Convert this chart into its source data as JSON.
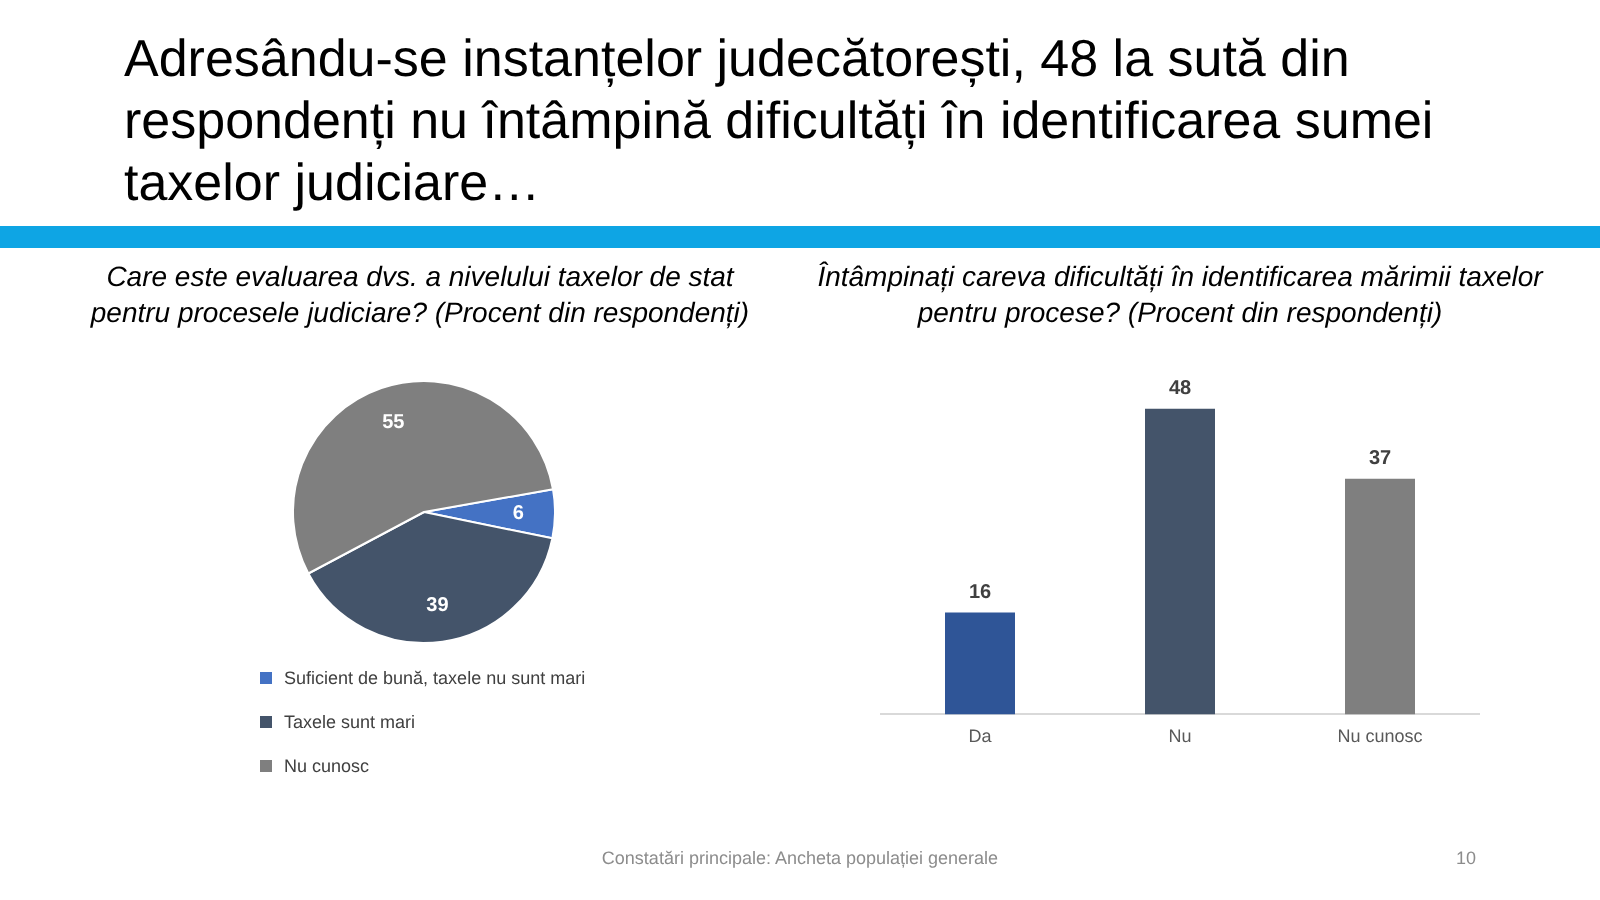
{
  "chart_data": [
    {
      "type": "pie",
      "title": "Care este evaluarea dvs. a nivelului taxelor de stat pentru procesele judiciare? (Procent din respondenți)",
      "categories": [
        "Suficient de bună, taxele nu sunt mari",
        "Taxele sunt mari",
        "Nu cunosc"
      ],
      "values": [
        6,
        39,
        55
      ],
      "colors": [
        "#4472c4",
        "#44546a",
        "#7f7f7f"
      ],
      "data_labels": true,
      "legend": "bottom",
      "annotations": [
        "Adresându-se instanțelor judecătorești, 48 la sută din respondenți nu întâmpină dificultăți în identificarea sumei taxelor judiciare…",
        "Constatări principale: Ancheta populației generale",
        "10"
      ]
    },
    {
      "type": "bar",
      "title": "Întâmpinați careva dificultăți în identificarea mărimii taxelor pentru procese? (Procent din respondenți)",
      "categories": [
        "Da",
        "Nu",
        "Nu cunosc"
      ],
      "values": [
        16,
        48,
        37
      ],
      "colors": [
        "#2f5597",
        "#44546a",
        "#7f7f7f"
      ],
      "data_labels": true
    }
  ]
}
